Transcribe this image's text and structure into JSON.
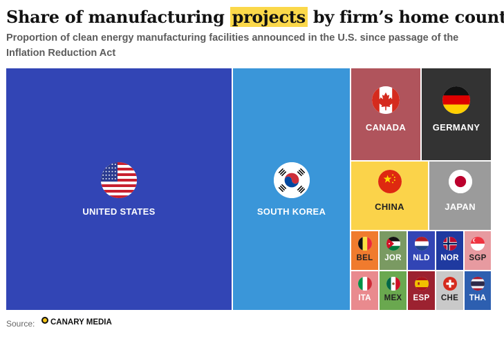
{
  "header": {
    "title_pre": "Share of manufacturing ",
    "title_highlight": "projects",
    "title_post": " by firm’s home country",
    "subtitle": "Proportion of clean energy manufacturing facilities announced in the U.S. since passage of the Inflation Reduction Act"
  },
  "footer": {
    "source_label": "Source:",
    "brand": "CANARY MEDIA"
  },
  "chart_data": {
    "type": "treemap",
    "title": "Share of manufacturing projects by firm’s home country",
    "tiles": [
      {
        "code": "us",
        "label": "UNITED STATES",
        "color": "#3245b5"
      },
      {
        "code": "kr",
        "label": "SOUTH KOREA",
        "color": "#3a96d9"
      },
      {
        "code": "ca",
        "label": "CANADA",
        "color": "#b0545c"
      },
      {
        "code": "de",
        "label": "GERMANY",
        "color": "#333333"
      },
      {
        "code": "cn",
        "label": "CHINA",
        "color": "#fbd34a",
        "label_color": "#222222"
      },
      {
        "code": "jp",
        "label": "JAPAN",
        "color": "#9b9b9b"
      },
      {
        "code": "be",
        "label": "BEL",
        "color": "#f07b2e",
        "label_color": "#222222"
      },
      {
        "code": "jo",
        "label": "JOR",
        "color": "#7a9a62"
      },
      {
        "code": "nl",
        "label": "NLD",
        "color": "#3245b5"
      },
      {
        "code": "no",
        "label": "NOR",
        "color": "#1f3aa0"
      },
      {
        "code": "sg",
        "label": "SGP",
        "color": "#e79aa0",
        "label_color": "#222222"
      },
      {
        "code": "it",
        "label": "ITA",
        "color": "#e98a8e"
      },
      {
        "code": "mx",
        "label": "MEX",
        "color": "#6aa84f",
        "label_color": "#222222"
      },
      {
        "code": "es",
        "label": "ESP",
        "color": "#9c2230"
      },
      {
        "code": "ch",
        "label": "CHE",
        "color": "#c9c9c9",
        "label_color": "#222222"
      },
      {
        "code": "th",
        "label": "THA",
        "color": "#2d5fb0"
      }
    ]
  }
}
